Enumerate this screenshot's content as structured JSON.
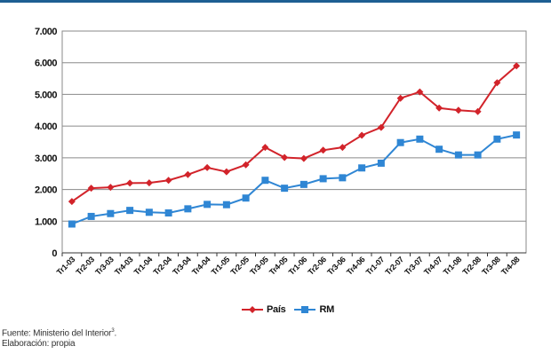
{
  "chart_data": {
    "type": "line",
    "categories": [
      "Tr1-03",
      "Tr2-03",
      "Tr3-03",
      "Tr4-03",
      "Tr1-04",
      "Tr2-04",
      "Tr3-04",
      "Tr4-04",
      "Tr1-05",
      "Tr2-05",
      "Tr3-05",
      "Tr4-05",
      "Tr1-06",
      "Tr2-06",
      "Tr3-06",
      "Tr4-06",
      "Tr1-07",
      "Tr2-07",
      "Tr3-07",
      "Tr4-07",
      "Tr1-08",
      "Tr2-08",
      "Tr3-08",
      "Tr4-08"
    ],
    "series": [
      {
        "name": "País",
        "color": "#d2232a",
        "marker": "diamond",
        "values": [
          1620,
          2040,
          2070,
          2200,
          2210,
          2290,
          2470,
          2690,
          2560,
          2780,
          3330,
          3010,
          2980,
          3240,
          3330,
          3710,
          3960,
          4880,
          5080,
          4570,
          4500,
          4460,
          5370,
          5900
        ]
      },
      {
        "name": "RM",
        "color": "#2f86d4",
        "marker": "square",
        "values": [
          910,
          1150,
          1240,
          1340,
          1280,
          1260,
          1390,
          1530,
          1520,
          1730,
          2290,
          2040,
          2160,
          2340,
          2370,
          2680,
          2830,
          3480,
          3590,
          3270,
          3090,
          3090,
          3590,
          3720
        ]
      }
    ],
    "yticks": [
      "0",
      "1.000",
      "2.000",
      "3.000",
      "4.000",
      "5.000",
      "6.000",
      "7.000"
    ],
    "ylim": [
      0,
      7000
    ],
    "grid": true,
    "legend": "bottom"
  },
  "legend": {
    "pais": "País",
    "rm": "RM"
  },
  "footer": {
    "source": "Fuente: Ministerio del Interior",
    "source_note": "3",
    "author": "Elaboración: propia"
  },
  "colors": {
    "accent": "#1e5f93",
    "pais": "#d2232a",
    "rm": "#2f86d4"
  }
}
